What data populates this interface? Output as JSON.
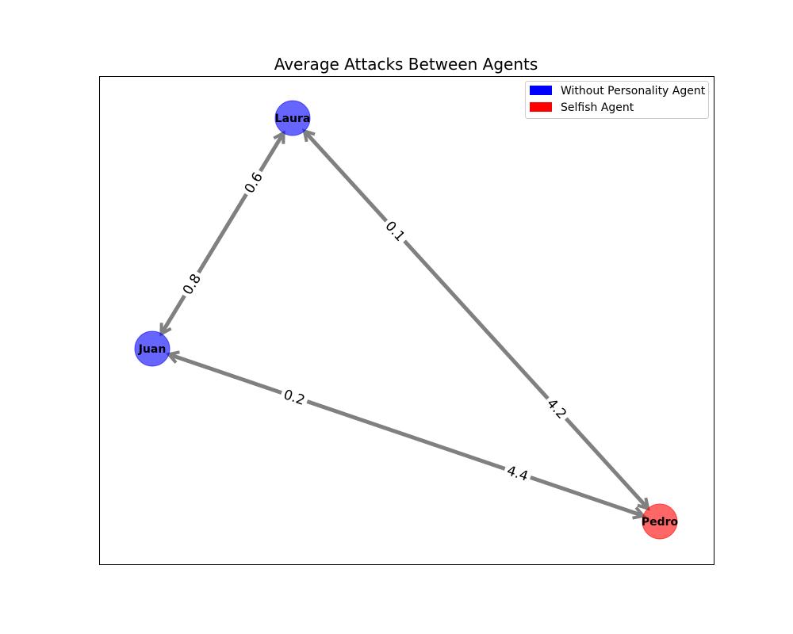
{
  "title": "Average Attacks Between Agents",
  "legend": {
    "placement": "top-right",
    "entries": [
      {
        "label": "Without Personality Agent",
        "color": "#0000ff"
      },
      {
        "label": "Selfish Agent",
        "color": "#ff0000"
      }
    ]
  },
  "nodes": [
    {
      "id": "Laura",
      "label": "Laura",
      "type": "Without Personality Agent",
      "color": "#0000ff"
    },
    {
      "id": "Juan",
      "label": "Juan",
      "type": "Without Personality Agent",
      "color": "#0000ff"
    },
    {
      "id": "Pedro",
      "label": "Pedro",
      "type": "Selfish Agent",
      "color": "#ff0000"
    }
  ],
  "edges": [
    {
      "from": "Laura",
      "to": "Juan",
      "value": "0.8"
    },
    {
      "from": "Juan",
      "to": "Laura",
      "value": "0.6"
    },
    {
      "from": "Laura",
      "to": "Pedro",
      "value": "4.2"
    },
    {
      "from": "Pedro",
      "to": "Laura",
      "value": "0.1"
    },
    {
      "from": "Juan",
      "to": "Pedro",
      "value": "4.4"
    },
    {
      "from": "Pedro",
      "to": "Juan",
      "value": "0.2"
    }
  ],
  "edge_color": "#808080"
}
